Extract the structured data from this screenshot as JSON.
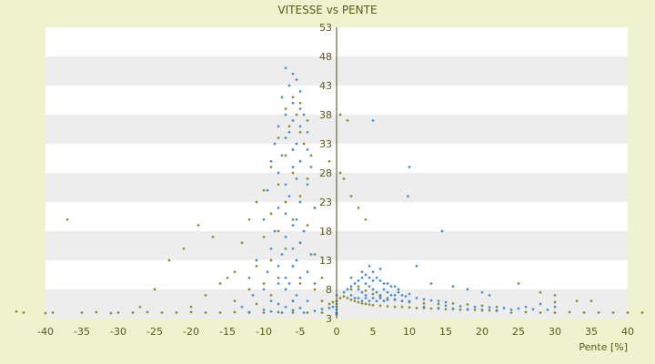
{
  "chart_data": {
    "type": "scatter",
    "title": "VITESSE vs PENTE",
    "xlabel": "Pente [%]",
    "ylabel": "",
    "xlim": [
      -40,
      40
    ],
    "ylim": [
      3,
      53
    ],
    "x_ticks": [
      -40,
      -35,
      -30,
      -25,
      -20,
      -15,
      -10,
      -5,
      0,
      5,
      10,
      15,
      20,
      25,
      30,
      35,
      40
    ],
    "y_ticks": [
      3,
      8,
      13,
      18,
      23,
      28,
      33,
      38,
      43,
      48,
      53
    ],
    "grid": "alternating horizontal bands",
    "colors": {
      "background": "#eef2cf",
      "plot_band_light": "#ffffff",
      "plot_band_dark": "#ededed",
      "series_blue": "#3c8ddc",
      "series_olive": "#8a8a1e",
      "text": "#5a5a14"
    },
    "series": [
      {
        "color": "#3c8ddc",
        "points": [
          [
            -7,
            46
          ],
          [
            -6,
            45
          ],
          [
            -5.5,
            44
          ],
          [
            -6.5,
            43
          ],
          [
            -5,
            42
          ],
          [
            -7.5,
            41
          ],
          [
            -6,
            40
          ],
          [
            -5,
            39
          ],
          [
            -4.5,
            38
          ],
          [
            -7,
            38
          ],
          [
            -6,
            37
          ],
          [
            -5,
            36
          ],
          [
            -8,
            36
          ],
          [
            -6.5,
            35
          ],
          [
            -4,
            35
          ],
          [
            -7,
            34
          ],
          [
            -5.5,
            33
          ],
          [
            -8.5,
            33
          ],
          [
            -6,
            32
          ],
          [
            -4,
            32
          ],
          [
            -7.5,
            31
          ],
          [
            -5,
            30
          ],
          [
            -9,
            30
          ],
          [
            -6,
            29
          ],
          [
            -3.5,
            29
          ],
          [
            -8,
            28
          ],
          [
            -5.5,
            27
          ],
          [
            -7,
            26
          ],
          [
            -4,
            26
          ],
          [
            -9.5,
            25
          ],
          [
            -6.5,
            24
          ],
          [
            -5,
            23
          ],
          [
            -8,
            22
          ],
          [
            -3,
            22
          ],
          [
            -7,
            21
          ],
          [
            -5.5,
            20
          ],
          [
            -10,
            20
          ],
          [
            -6,
            19
          ],
          [
            -4.5,
            18
          ],
          [
            -8.5,
            18
          ],
          [
            -7,
            17
          ],
          [
            -5,
            16
          ],
          [
            -9,
            15
          ],
          [
            -6,
            15
          ],
          [
            -3.5,
            14
          ],
          [
            -7.5,
            14
          ],
          [
            -5.5,
            13
          ],
          [
            -11,
            13
          ],
          [
            -8,
            12
          ],
          [
            -6,
            12
          ],
          [
            -4,
            11
          ],
          [
            -9.5,
            11
          ],
          [
            -7,
            10
          ],
          [
            -5,
            10
          ],
          [
            -12,
            10
          ],
          [
            -8,
            9
          ],
          [
            -6.5,
            9
          ],
          [
            -3,
            9
          ],
          [
            -10,
            8
          ],
          [
            -7,
            8
          ],
          [
            -5.5,
            7
          ],
          [
            -11.5,
            7
          ],
          [
            -9,
            6
          ],
          [
            -6,
            6
          ],
          [
            -4,
            6
          ],
          [
            -8,
            5.5
          ],
          [
            -13,
            5
          ],
          [
            -7,
            5
          ],
          [
            -5,
            4.8
          ],
          [
            -10,
            4.5
          ],
          [
            -6,
            4.4
          ],
          [
            -3,
            4.3
          ],
          [
            -9,
            4.2
          ],
          [
            -12,
            4.1
          ],
          [
            -7.5,
            4
          ],
          [
            -4.5,
            4
          ],
          [
            -2,
            4.6
          ],
          [
            -1,
            4.8
          ],
          [
            -0.5,
            5
          ],
          [
            0,
            4.5
          ],
          [
            0,
            4
          ],
          [
            0,
            5
          ],
          [
            0,
            6
          ],
          [
            0,
            7
          ],
          [
            1,
            7.5
          ],
          [
            1.5,
            8
          ],
          [
            2,
            8.5
          ],
          [
            2.5,
            9
          ],
          [
            3,
            9.5
          ],
          [
            3.5,
            10
          ],
          [
            4,
            10.5
          ],
          [
            4.5,
            10
          ],
          [
            5,
            9.5
          ],
          [
            5.5,
            10
          ],
          [
            6,
            9.5
          ],
          [
            6.5,
            9
          ],
          [
            7,
            9
          ],
          [
            7.5,
            8.5
          ],
          [
            8,
            8.5
          ],
          [
            8.5,
            8
          ],
          [
            3,
            8
          ],
          [
            3.5,
            7.5
          ],
          [
            4,
            7
          ],
          [
            4.5,
            8.5
          ],
          [
            5,
            8
          ],
          [
            5.5,
            7.5
          ],
          [
            6,
            7
          ],
          [
            6.5,
            8
          ],
          [
            7,
            7.5
          ],
          [
            7.5,
            7
          ],
          [
            8,
            7
          ],
          [
            8.5,
            7.5
          ],
          [
            9,
            7
          ],
          [
            9.5,
            6.8
          ],
          [
            10,
            7.2
          ],
          [
            2,
            7
          ],
          [
            2.5,
            6.5
          ],
          [
            3,
            6.5
          ],
          [
            3.5,
            6
          ],
          [
            4,
            6.5
          ],
          [
            4.5,
            6
          ],
          [
            5,
            6.5
          ],
          [
            5.5,
            6
          ],
          [
            6,
            6.5
          ],
          [
            6.5,
            6
          ],
          [
            7,
            6.2
          ],
          [
            8,
            6.3
          ],
          [
            9,
            6
          ],
          [
            10,
            6
          ],
          [
            11,
            6.5
          ],
          [
            12,
            6.3
          ],
          [
            13,
            6.1
          ],
          [
            14,
            6
          ],
          [
            15,
            5.8
          ],
          [
            4,
            9
          ],
          [
            5,
            11
          ],
          [
            6,
            11.5
          ],
          [
            4.5,
            12
          ],
          [
            3.5,
            11
          ],
          [
            2,
            10
          ],
          [
            5,
            37
          ],
          [
            10,
            29
          ],
          [
            9.8,
            24
          ],
          [
            14.5,
            18
          ],
          [
            11,
            12
          ],
          [
            13,
            9
          ],
          [
            16,
            8.5
          ],
          [
            18,
            8
          ],
          [
            20,
            7.5
          ],
          [
            21,
            7
          ],
          [
            12,
            5
          ],
          [
            14,
            4.8
          ],
          [
            16,
            4.7
          ],
          [
            18,
            4.6
          ],
          [
            20,
            4.5
          ],
          [
            22,
            4.4
          ],
          [
            24,
            4.5
          ],
          [
            26,
            5
          ],
          [
            28,
            5.5
          ],
          [
            30,
            5
          ],
          [
            15,
            5.2
          ],
          [
            17,
            5.1
          ],
          [
            19,
            5
          ],
          [
            21,
            4.9
          ],
          [
            23,
            4.8
          ],
          [
            25,
            4.7
          ],
          [
            27,
            4.6
          ],
          [
            29,
            4.5
          ],
          [
            0,
            3.9
          ],
          [
            0,
            3.7
          ]
        ]
      },
      {
        "color": "#8a8a1e",
        "points": [
          [
            -6,
            41
          ],
          [
            -5,
            40
          ],
          [
            -7,
            39
          ],
          [
            -5.5,
            38
          ],
          [
            -4,
            37
          ],
          [
            -6.5,
            36
          ],
          [
            -5,
            35
          ],
          [
            -8,
            34
          ],
          [
            -4.5,
            33
          ],
          [
            -6,
            32
          ],
          [
            -7,
            31
          ],
          [
            -3.5,
            31
          ],
          [
            -5,
            30
          ],
          [
            -9,
            29
          ],
          [
            -6,
            28
          ],
          [
            -4,
            27
          ],
          [
            -8,
            26
          ],
          [
            -10,
            25
          ],
          [
            -5,
            24
          ],
          [
            -7,
            23
          ],
          [
            -11,
            23
          ],
          [
            -3,
            22
          ],
          [
            -9,
            21
          ],
          [
            -6,
            20
          ],
          [
            -12,
            20
          ],
          [
            -4,
            19
          ],
          [
            -8,
            18
          ],
          [
            -10,
            17
          ],
          [
            -5,
            16
          ],
          [
            -13,
            16
          ],
          [
            -7,
            15
          ],
          [
            -3,
            14
          ],
          [
            -9,
            13
          ],
          [
            -11,
            12
          ],
          [
            -6,
            12
          ],
          [
            -14,
            11
          ],
          [
            -4,
            11
          ],
          [
            -8,
            10
          ],
          [
            -15,
            10
          ],
          [
            -2,
            10
          ],
          [
            -10,
            9
          ],
          [
            -5,
            9
          ],
          [
            -16,
            9
          ],
          [
            -12,
            8
          ],
          [
            -7,
            8
          ],
          [
            -3,
            8
          ],
          [
            -18,
            7
          ],
          [
            -9,
            7
          ],
          [
            -14,
            6
          ],
          [
            -6,
            6
          ],
          [
            -2,
            6
          ],
          [
            -11,
            5.5
          ],
          [
            -20,
            5
          ],
          [
            -1,
            5.5
          ],
          [
            -0.5,
            5.8
          ],
          [
            0,
            6
          ],
          [
            0,
            5.5
          ],
          [
            0.5,
            6.5
          ],
          [
            1,
            6.8
          ],
          [
            1.5,
            6.5
          ],
          [
            2,
            6.2
          ],
          [
            2.5,
            6
          ],
          [
            3,
            5.8
          ],
          [
            3.5,
            5.6
          ],
          [
            4,
            5.5
          ],
          [
            4.5,
            5.4
          ],
          [
            5,
            5.3
          ],
          [
            6,
            5.2
          ],
          [
            7,
            5.1
          ],
          [
            8,
            5
          ],
          [
            9,
            5
          ],
          [
            10,
            4.9
          ],
          [
            11,
            4.8
          ],
          [
            12,
            4.8
          ],
          [
            13,
            4.7
          ],
          [
            14,
            4.7
          ],
          [
            15,
            4.6
          ],
          [
            16,
            4.6
          ],
          [
            17,
            4.5
          ],
          [
            18,
            4.5
          ],
          [
            19,
            4.5
          ],
          [
            20,
            4.4
          ],
          [
            21,
            4.4
          ],
          [
            22,
            4.3
          ],
          [
            2,
            8
          ],
          [
            3,
            8.5
          ],
          [
            4,
            7.8
          ],
          [
            5,
            7.2
          ],
          [
            6,
            6.8
          ],
          [
            7,
            6.5
          ],
          [
            8,
            6.2
          ],
          [
            9,
            6
          ],
          [
            10,
            5.8
          ],
          [
            12,
            5.6
          ],
          [
            14,
            5.5
          ],
          [
            16,
            5.6
          ],
          [
            18,
            5.4
          ],
          [
            20,
            5.2
          ],
          [
            22,
            5
          ],
          [
            25,
            9
          ],
          [
            28,
            7.5
          ],
          [
            30,
            7
          ],
          [
            33,
            6
          ],
          [
            0.5,
            38
          ],
          [
            1.5,
            37
          ],
          [
            -1,
            30
          ],
          [
            0.5,
            28
          ],
          [
            1,
            27
          ],
          [
            2,
            24
          ],
          [
            3,
            22
          ],
          [
            4,
            20
          ],
          [
            -37,
            20
          ],
          [
            -19,
            19
          ],
          [
            -21,
            15
          ],
          [
            -17,
            17
          ],
          [
            -23,
            13
          ],
          [
            -25,
            8
          ],
          [
            -27,
            5
          ],
          [
            30,
            5.8
          ],
          [
            35,
            6
          ],
          [
            -40,
            3.9
          ],
          [
            -39,
            4
          ],
          [
            -35,
            4
          ],
          [
            -33,
            4.1
          ],
          [
            -31,
            3.9
          ],
          [
            -30,
            4
          ],
          [
            -28,
            4
          ],
          [
            -26,
            4.1
          ],
          [
            -24,
            4
          ],
          [
            -22,
            4
          ],
          [
            -20,
            4.1
          ],
          [
            -18,
            4
          ],
          [
            -16,
            4
          ],
          [
            -14,
            4.1
          ],
          [
            -12,
            4
          ],
          [
            -10,
            4
          ],
          [
            -8,
            4.1
          ],
          [
            -6,
            4
          ],
          [
            -4,
            4
          ],
          [
            -2,
            4
          ],
          [
            24,
            4
          ],
          [
            26,
            4.1
          ],
          [
            28,
            4
          ],
          [
            30,
            4
          ],
          [
            32,
            4.1
          ],
          [
            34,
            4
          ],
          [
            36,
            4
          ],
          [
            38,
            4
          ],
          [
            40,
            4
          ],
          [
            42,
            4
          ],
          [
            -44,
            4.2
          ],
          [
            -43,
            4
          ]
        ]
      }
    ]
  }
}
